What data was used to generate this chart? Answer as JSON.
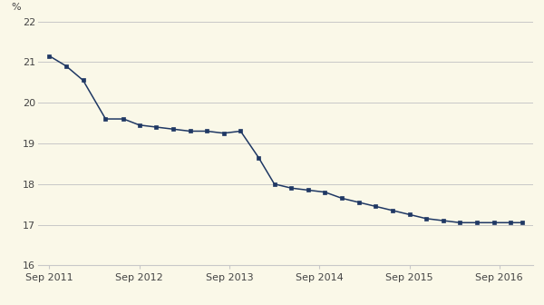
{
  "x_labels": [
    "Sep 2011",
    "Sep 2012",
    "Sep 2013",
    "Sep 2014",
    "Sep 2015",
    "Sep 2016"
  ],
  "x_tick_positions": [
    0,
    4,
    8,
    12,
    16,
    20
  ],
  "ylabel": "%",
  "ylim": [
    16,
    22
  ],
  "yticks": [
    16,
    17,
    18,
    19,
    20,
    21,
    22
  ],
  "xlim": [
    -0.5,
    21.5
  ],
  "background_color": "#faf8e8",
  "line_color": "#1f3864",
  "marker_color": "#1f3864",
  "grid_color": "#c8c8c8",
  "tick_label_color": "#444444",
  "data_x": [
    0,
    0.75,
    1.5,
    2.5,
    3.3,
    4,
    4.75,
    5.5,
    6.25,
    7,
    7.75,
    8.5,
    9.3,
    10,
    10.75,
    11.5,
    12.25,
    13,
    13.75,
    14.5,
    15.25,
    16,
    16.75,
    17.5,
    18.25,
    19,
    19.75,
    20.5,
    21
  ],
  "data_y": [
    21.15,
    20.9,
    20.55,
    19.6,
    19.6,
    19.45,
    19.4,
    19.35,
    19.3,
    19.3,
    19.25,
    19.3,
    18.65,
    18.0,
    17.9,
    17.85,
    17.8,
    17.65,
    17.55,
    17.45,
    17.35,
    17.25,
    17.15,
    17.1,
    17.05,
    17.05,
    17.05,
    17.05,
    17.05
  ]
}
